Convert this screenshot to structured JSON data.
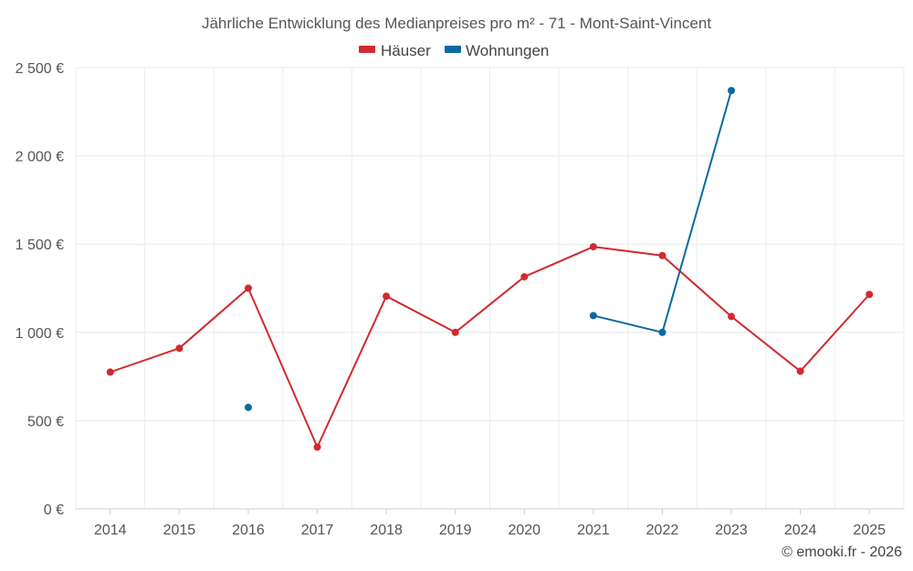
{
  "chart_data": {
    "type": "line",
    "title": "Jährliche Entwicklung des Medianpreises pro m² - 71 - Mont-Saint-Vincent",
    "categories": [
      "2014",
      "2015",
      "2016",
      "2017",
      "2018",
      "2019",
      "2020",
      "2021",
      "2022",
      "2023",
      "2024",
      "2025"
    ],
    "y_ticks": [
      0,
      500,
      1000,
      1500,
      2000,
      2500
    ],
    "y_tick_labels": [
      "0 €",
      "500 €",
      "1 000 €",
      "1 500 €",
      "2 000 €",
      "2 500 €"
    ],
    "ylim": [
      0,
      2500
    ],
    "grid": true,
    "legend_position": "top-center",
    "series": [
      {
        "name": "Häuser",
        "color": "#d12a2f",
        "values": [
          775,
          910,
          1250,
          350,
          1205,
          1000,
          1315,
          1485,
          1435,
          1090,
          780,
          1215
        ]
      },
      {
        "name": "Wohnungen",
        "color": "#0a6aa1",
        "values": [
          null,
          null,
          575,
          null,
          null,
          null,
          null,
          1095,
          1000,
          2370,
          null,
          null
        ]
      }
    ],
    "credit": "© emooki.fr - 2026"
  }
}
